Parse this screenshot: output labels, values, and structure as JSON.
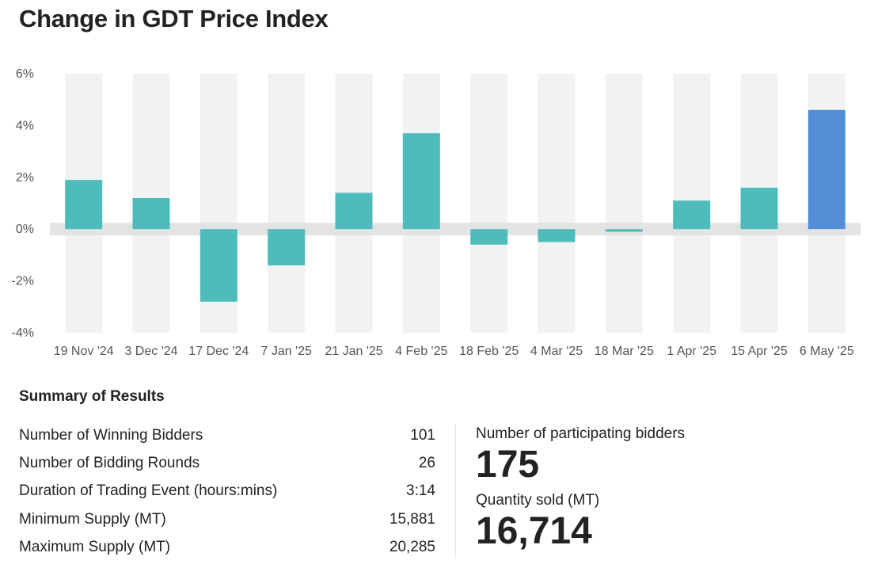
{
  "page": {
    "title": "Change in GDT Price Index"
  },
  "chart_data": {
    "type": "bar",
    "title": "Change in GDT Price Index",
    "xlabel": "",
    "ylabel": "",
    "unit": "%",
    "ylim": [
      -4,
      6
    ],
    "yticks": [
      "6%",
      "4%",
      "2%",
      "0%",
      "-2%",
      "-4%"
    ],
    "ytick_values": [
      6,
      4,
      2,
      0,
      -2,
      -4
    ],
    "categories": [
      "19 Nov '24",
      "3 Dec '24",
      "17 Dec '24",
      "7 Jan '25",
      "21 Jan '25",
      "4 Feb '25",
      "18 Feb '25",
      "4 Mar '25",
      "18 Mar '25",
      "1 Apr '25",
      "15 Apr '25",
      "6 May '25"
    ],
    "values": [
      1.9,
      1.2,
      -2.8,
      -1.4,
      1.4,
      3.7,
      -0.6,
      -0.5,
      -0.1,
      1.1,
      1.6,
      4.6
    ],
    "highlight_index": 11,
    "colors": {
      "bar": "#4fbcbc",
      "highlight": "#528fd6",
      "band": "#f2f2f2",
      "zero_band": "#e3e3e3"
    },
    "grid": false,
    "legend": "none"
  },
  "summary": {
    "heading": "Summary of Results",
    "rows": [
      {
        "label": "Number of Winning Bidders",
        "value": "101"
      },
      {
        "label": "Number of Bidding Rounds",
        "value": "26"
      },
      {
        "label": "Duration of Trading Event (hours:mins)",
        "value": "3:14"
      },
      {
        "label": "Minimum Supply (MT)",
        "value": "15,881"
      },
      {
        "label": "Maximum Supply (MT)",
        "value": "20,285"
      }
    ],
    "bidders_label": "Number of participating bidders",
    "bidders_value": "175",
    "quantity_label": "Quantity sold (MT)",
    "quantity_value": "16,714"
  }
}
